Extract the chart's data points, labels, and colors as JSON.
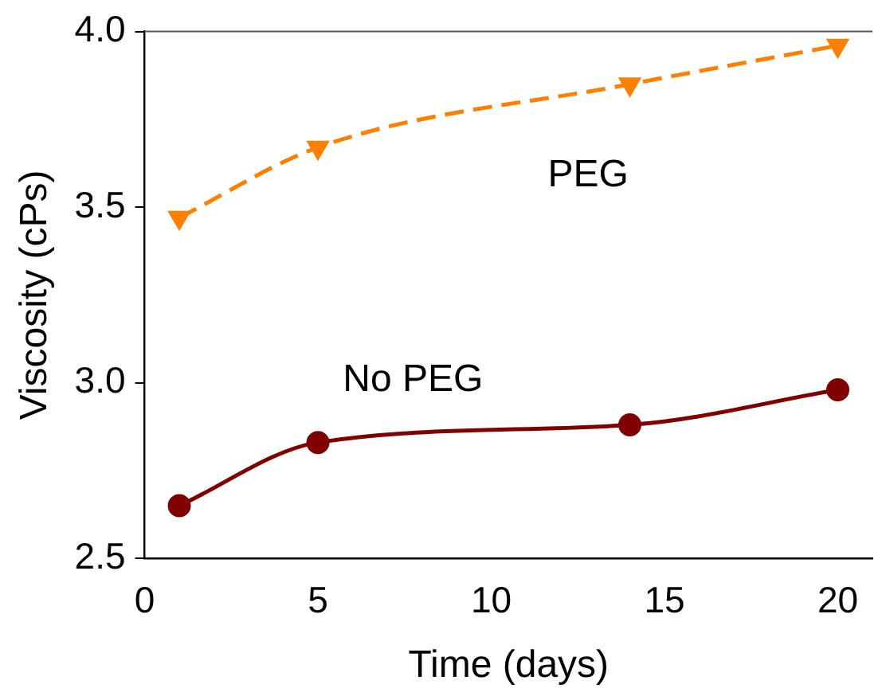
{
  "chart_data": {
    "type": "line",
    "xlabel": "Time (days)",
    "ylabel": "Viscosity (cPs)",
    "x": [
      1,
      5,
      14,
      20
    ],
    "series": [
      {
        "name": "PEG",
        "color": "#ff8000",
        "values": [
          3.47,
          3.67,
          3.85,
          3.96
        ],
        "marker": "triangle",
        "line_style": "dashed"
      },
      {
        "name": "No PEG",
        "color": "#800000",
        "values": [
          2.65,
          2.83,
          2.88,
          2.98
        ],
        "marker": "circle",
        "line_style": "solid"
      }
    ],
    "xlim": [
      0,
      21
    ],
    "xticks": [
      0,
      5,
      10,
      15,
      20
    ],
    "ylim": [
      2.5,
      4.0
    ],
    "yticks": [
      2.5,
      {
        "value": 3,
        "label": "3.0"
      },
      3.5,
      {
        "value": 4,
        "label": "4.0"
      }
    ],
    "grid": false,
    "legend": false
  }
}
